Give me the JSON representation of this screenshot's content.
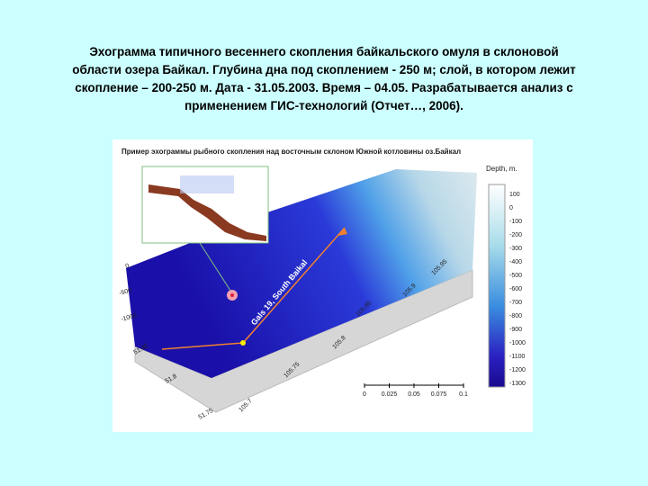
{
  "header": {
    "lines": [
      "Эхограмма типичного весеннего скопления байкальского омуля в склоновой",
      "области озера Байкал. Глубина дна под скоплением - 250 м; слой, в котором лежит",
      "скопление – 200-250 м. Дата - 31.05.2003. Время – 04.05. Разрабатывается анализ с",
      "применением ГИС-технологий (Отчет…, 2006)."
    ]
  },
  "figure": {
    "title": "Пример эхограммы рыбного скопления над восточным склоном Южной котловины оз.Байкал",
    "legend_title": "Depth, m.",
    "legend_ticks": [
      "100",
      "0",
      "-100",
      "-200",
      "-300",
      "-400",
      "-500",
      "-600",
      "-700",
      "-800",
      "-900",
      "-1000",
      "-1100",
      "-1200",
      "-1300"
    ],
    "depth_labels": [
      "0",
      "-500",
      "-1000"
    ],
    "lat_labels": [
      "51.85",
      "51.8",
      "51.75"
    ],
    "lon_labels": [
      "105.7",
      "105.75",
      "105.8",
      "105.85",
      "105.9",
      "105.95"
    ],
    "track_label": "Gals 19, South Baikal",
    "scale_labels": [
      "0",
      "0.025",
      "0.05",
      "0.075",
      "0.1"
    ]
  }
}
